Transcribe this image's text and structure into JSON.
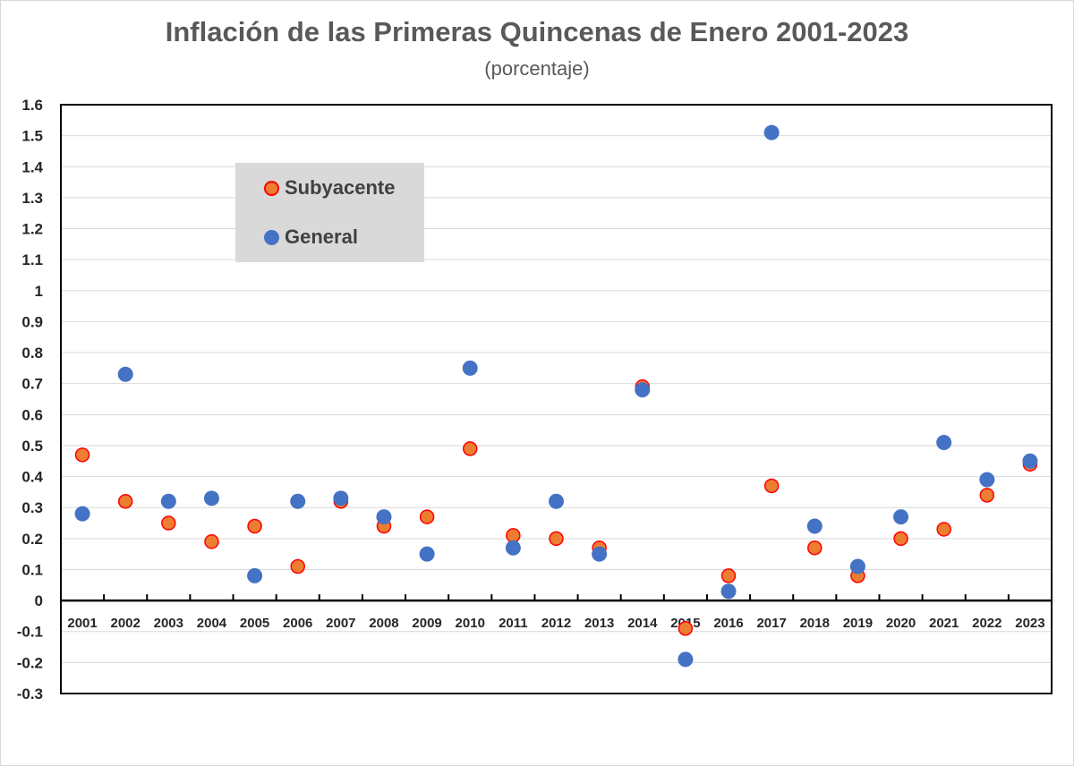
{
  "colors": {
    "subyacente_fill": "#ed7d31",
    "subyacente_stroke": "#ff0000",
    "general_fill": "#4472c4",
    "grid": "#d9d9d9",
    "axis": "#000000"
  },
  "chart_data": {
    "type": "scatter",
    "title": "Inflación de las Primeras Quincenas de Enero 2001-2023",
    "subtitle": "(porcentaje)",
    "categories": [
      "2001",
      "2002",
      "2003",
      "2004",
      "2005",
      "2006",
      "2007",
      "2008",
      "2009",
      "2010",
      "2011",
      "2012",
      "2013",
      "2014",
      "2015",
      "2016",
      "2017",
      "2018",
      "2019",
      "2020",
      "2021",
      "2022",
      "2023"
    ],
    "series": [
      {
        "name": "Subyacente",
        "values": [
          0.47,
          0.32,
          0.25,
          0.19,
          0.24,
          0.11,
          0.32,
          0.24,
          0.27,
          0.49,
          0.21,
          0.2,
          0.17,
          0.69,
          -0.09,
          0.08,
          0.37,
          0.17,
          0.08,
          0.2,
          0.23,
          0.34,
          0.44
        ]
      },
      {
        "name": "General",
        "values": [
          0.28,
          0.73,
          0.32,
          0.33,
          0.08,
          0.32,
          0.33,
          0.27,
          0.15,
          0.75,
          0.17,
          0.32,
          0.15,
          0.68,
          -0.19,
          0.03,
          1.51,
          0.24,
          0.11,
          0.27,
          0.51,
          0.39,
          0.45
        ]
      }
    ],
    "ylim": [
      -0.3,
      1.6
    ],
    "yticks": [
      "1.6",
      "1.5",
      "1.4",
      "1.3",
      "1.2",
      "1.1",
      "1",
      "0.9",
      "0.8",
      "0.7",
      "0.6",
      "0.5",
      "0.4",
      "0.3",
      "0.2",
      "0.1",
      "0",
      "-0.1",
      "-0.2",
      "-0.3"
    ],
    "grid": true,
    "legend_position": "top-left"
  }
}
